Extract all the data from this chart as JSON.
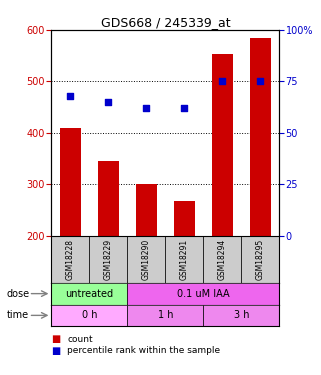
{
  "title": "GDS668 / 245339_at",
  "samples": [
    "GSM18228",
    "GSM18229",
    "GSM18290",
    "GSM18291",
    "GSM18294",
    "GSM18295"
  ],
  "bar_values": [
    410,
    345,
    300,
    268,
    553,
    585
  ],
  "bar_bottom": 200,
  "scatter_values": [
    68,
    65,
    62,
    62,
    75,
    75
  ],
  "bar_color": "#cc0000",
  "scatter_color": "#0000cc",
  "ylim_left": [
    200,
    600
  ],
  "ylim_right": [
    0,
    100
  ],
  "yticks_left": [
    200,
    300,
    400,
    500,
    600
  ],
  "yticks_right": [
    0,
    25,
    50,
    75,
    100
  ],
  "grid_lines": [
    300,
    400,
    500
  ],
  "dose_labels": [
    {
      "text": "untreated",
      "start": 0,
      "end": 2,
      "color": "#99ff99"
    },
    {
      "text": "0.1 uM IAA",
      "start": 2,
      "end": 6,
      "color": "#ee66ee"
    }
  ],
  "time_labels": [
    {
      "text": "0 h",
      "start": 0,
      "end": 2,
      "color": "#ffaaff"
    },
    {
      "text": "1 h",
      "start": 2,
      "end": 4,
      "color": "#ee88ee"
    },
    {
      "text": "3 h",
      "start": 4,
      "end": 6,
      "color": "#ee88ee"
    }
  ],
  "dose_row_label": "dose",
  "time_row_label": "time",
  "legend_count_color": "#cc0000",
  "legend_pct_color": "#0000cc",
  "legend_count_text": "count",
  "legend_pct_text": "percentile rank within the sample",
  "sample_box_color": "#cccccc",
  "bar_width": 0.55
}
